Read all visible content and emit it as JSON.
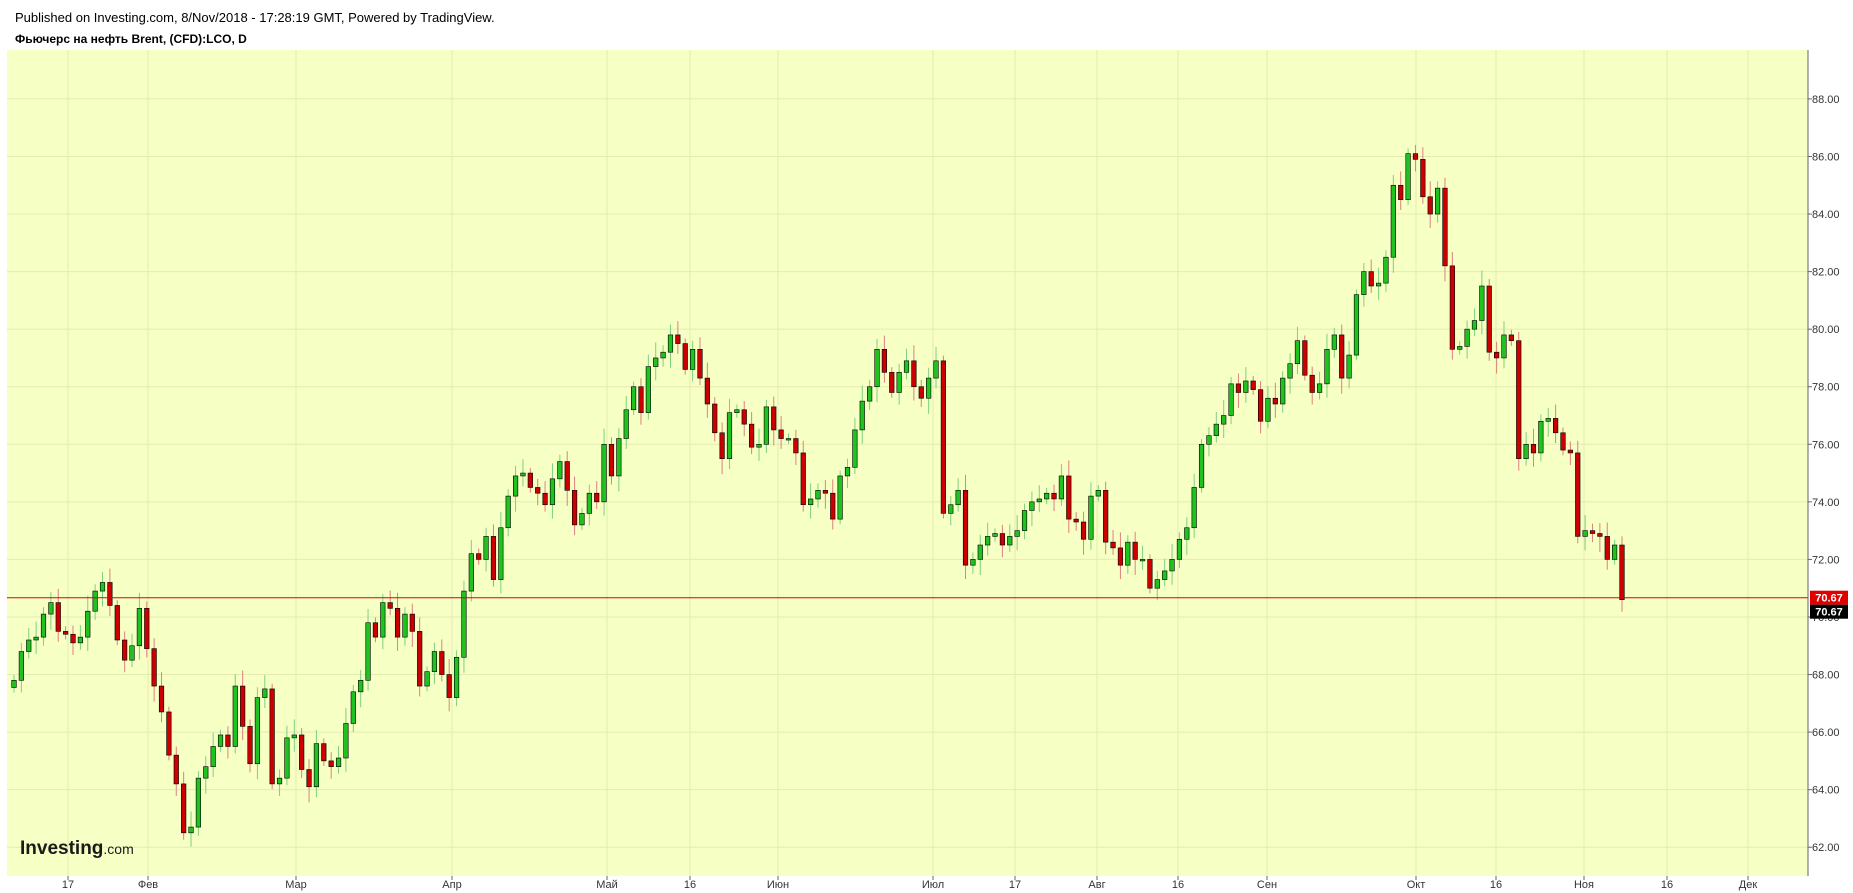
{
  "header": {
    "published": "Published on Investing.com, 8/Nov/2018 - 17:28:19 GMT, Powered by TradingView.",
    "instrument": "Фьючерс на нефть Brent, (CFD):LCO, D"
  },
  "logo": {
    "bold": "Investing",
    "suffix": ".com"
  },
  "colors": {
    "background": "#f6ffc4",
    "up": "#1fc21f",
    "down": "#cc0000",
    "border": "#000000",
    "price_line": "#e00000",
    "price_label_bg": "#e00000",
    "last_label_bg": "#000000"
  },
  "price_labels": {
    "current": "70.67",
    "last": "70.67"
  },
  "chart_data": {
    "type": "candlestick",
    "ylim": [
      61.0,
      89.7
    ],
    "y_ticks": [
      "62.00",
      "64.00",
      "66.00",
      "68.00",
      "70.00",
      "72.00",
      "74.00",
      "76.00",
      "78.00",
      "80.00",
      "82.00",
      "84.00",
      "86.00",
      "88.00"
    ],
    "x_ticks": [
      "17",
      "Фев",
      "Мар",
      "Апр",
      "Май",
      "16",
      "Июн",
      "Июл",
      "17",
      "Авг",
      "16",
      "Сен",
      "Окт",
      "16",
      "Ноя",
      "16",
      "Дек"
    ],
    "current_price": 70.67,
    "closes": [
      67.8,
      68.8,
      69.2,
      69.3,
      70.1,
      70.5,
      69.5,
      69.4,
      69.1,
      69.3,
      70.2,
      70.9,
      71.2,
      70.4,
      69.2,
      68.5,
      69.0,
      70.3,
      68.9,
      67.6,
      66.7,
      65.2,
      64.2,
      62.5,
      62.7,
      64.4,
      64.8,
      65.5,
      65.9,
      65.5,
      67.6,
      66.2,
      64.9,
      67.2,
      67.5,
      64.2,
      64.4,
      65.8,
      65.9,
      64.7,
      64.1,
      65.6,
      65.0,
      64.8,
      65.1,
      66.3,
      67.4,
      67.8,
      69.8,
      69.3,
      70.5,
      70.3,
      69.3,
      70.1,
      69.5,
      67.6,
      68.1,
      68.8,
      68.0,
      67.2,
      68.6,
      70.9,
      72.2,
      72.0,
      72.8,
      71.3,
      73.1,
      74.2,
      74.9,
      75.0,
      74.5,
      74.3,
      73.9,
      74.8,
      75.4,
      74.4,
      73.2,
      73.6,
      74.3,
      74.0,
      76.0,
      74.9,
      76.2,
      77.2,
      78.0,
      77.1,
      78.7,
      79.0,
      79.2,
      79.8,
      79.5,
      78.6,
      79.3,
      78.3,
      77.4,
      76.4,
      75.5,
      77.1,
      77.2,
      76.7,
      75.9,
      76.0,
      77.3,
      76.5,
      76.2,
      76.2,
      75.7,
      73.9,
      74.1,
      74.4,
      74.3,
      73.4,
      74.9,
      75.2,
      76.5,
      77.5,
      78.0,
      79.3,
      78.5,
      77.8,
      78.5,
      78.9,
      78.0,
      77.6,
      78.3,
      78.9,
      73.6,
      73.9,
      74.4,
      71.8,
      72.0,
      72.5,
      72.8,
      72.9,
      72.5,
      72.8,
      73.0,
      73.7,
      74.0,
      74.1,
      74.3,
      74.1,
      74.9,
      73.4,
      73.3,
      72.7,
      74.2,
      74.4,
      72.6,
      72.4,
      71.8,
      72.6,
      72.0,
      72.0,
      71.0,
      71.3,
      71.6,
      72.0,
      72.7,
      73.1,
      74.5,
      76.0,
      76.3,
      76.7,
      77.0,
      78.1,
      77.8,
      78.2,
      77.9,
      76.8,
      77.6,
      77.4,
      78.3,
      78.8,
      79.6,
      78.4,
      77.8,
      78.1,
      79.3,
      79.8,
      78.3,
      79.1,
      81.2,
      82.0,
      81.5,
      81.6,
      82.5,
      85.0,
      84.5,
      86.1,
      85.9,
      84.6,
      84.0,
      84.9,
      82.2,
      79.3,
      79.4,
      80.0,
      80.3,
      81.5,
      79.2,
      79.0,
      79.8,
      79.6,
      75.5,
      76.0,
      75.7,
      76.8,
      76.9,
      76.4,
      75.8,
      75.7,
      72.8,
      73.0,
      72.9,
      72.8,
      72.0,
      72.5,
      70.6
    ],
    "timeframe": "D"
  }
}
